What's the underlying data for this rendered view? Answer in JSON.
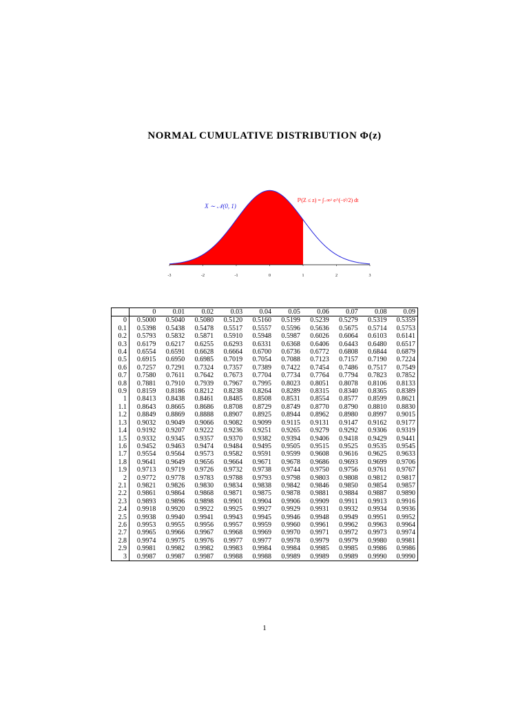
{
  "title": "NORMAL CUMULATIVE DISTRIBUTION Φ(z)",
  "figure": {
    "distribution_label": "X ∼ 𝒩(0, 1)",
    "formula_label": "ℙ(Z ≤ z) = ∫₋∞ᶻ e^(−t²/2) dt",
    "xlim": [
      -3,
      3
    ],
    "xticks": [
      -3,
      -2,
      -1,
      0,
      1,
      2,
      3
    ],
    "shaded_upper_limit": 1,
    "curve_color": "#2222dd",
    "shade_color": "#ff0000"
  },
  "table": {
    "columns": [
      "0",
      "0.01",
      "0.02",
      "0.03",
      "0.04",
      "0.05",
      "0.06",
      "0.07",
      "0.08",
      "0.09"
    ],
    "rows": [
      {
        "label": "0",
        "cells": [
          "0.5000",
          "0.5040",
          "0.5080",
          "0.5120",
          "0.5160",
          "0.5199",
          "0.5239",
          "0.5279",
          "0.5319",
          "0.5359"
        ]
      },
      {
        "label": "0.1",
        "cells": [
          "0.5398",
          "0.5438",
          "0.5478",
          "0.5517",
          "0.5557",
          "0.5596",
          "0.5636",
          "0.5675",
          "0.5714",
          "0.5753"
        ]
      },
      {
        "label": "0.2",
        "cells": [
          "0.5793",
          "0.5832",
          "0.5871",
          "0.5910",
          "0.5948",
          "0.5987",
          "0.6026",
          "0.6064",
          "0.6103",
          "0.6141"
        ]
      },
      {
        "label": "0.3",
        "cells": [
          "0.6179",
          "0.6217",
          "0.6255",
          "0.6293",
          "0.6331",
          "0.6368",
          "0.6406",
          "0.6443",
          "0.6480",
          "0.6517"
        ]
      },
      {
        "label": "0.4",
        "cells": [
          "0.6554",
          "0.6591",
          "0.6628",
          "0.6664",
          "0.6700",
          "0.6736",
          "0.6772",
          "0.6808",
          "0.6844",
          "0.6879"
        ]
      },
      {
        "label": "0.5",
        "cells": [
          "0.6915",
          "0.6950",
          "0.6985",
          "0.7019",
          "0.7054",
          "0.7088",
          "0.7123",
          "0.7157",
          "0.7190",
          "0.7224"
        ]
      },
      {
        "label": "0.6",
        "cells": [
          "0.7257",
          "0.7291",
          "0.7324",
          "0.7357",
          "0.7389",
          "0.7422",
          "0.7454",
          "0.7486",
          "0.7517",
          "0.7549"
        ]
      },
      {
        "label": "0.7",
        "cells": [
          "0.7580",
          "0.7611",
          "0.7642",
          "0.7673",
          "0.7704",
          "0.7734",
          "0.7764",
          "0.7794",
          "0.7823",
          "0.7852"
        ]
      },
      {
        "label": "0.8",
        "cells": [
          "0.7881",
          "0.7910",
          "0.7939",
          "0.7967",
          "0.7995",
          "0.8023",
          "0.8051",
          "0.8078",
          "0.8106",
          "0.8133"
        ]
      },
      {
        "label": "0.9",
        "cells": [
          "0.8159",
          "0.8186",
          "0.8212",
          "0.8238",
          "0.8264",
          "0.8289",
          "0.8315",
          "0.8340",
          "0.8365",
          "0.8389"
        ]
      },
      {
        "label": "1",
        "cells": [
          "0.8413",
          "0.8438",
          "0.8461",
          "0.8485",
          "0.8508",
          "0.8531",
          "0.8554",
          "0.8577",
          "0.8599",
          "0.8621"
        ]
      },
      {
        "label": "1.1",
        "cells": [
          "0.8643",
          "0.8665",
          "0.8686",
          "0.8708",
          "0.8729",
          "0.8749",
          "0.8770",
          "0.8790",
          "0.8810",
          "0.8830"
        ]
      },
      {
        "label": "1.2",
        "cells": [
          "0.8849",
          "0.8869",
          "0.8888",
          "0.8907",
          "0.8925",
          "0.8944",
          "0.8962",
          "0.8980",
          "0.8997",
          "0.9015"
        ]
      },
      {
        "label": "1.3",
        "cells": [
          "0.9032",
          "0.9049",
          "0.9066",
          "0.9082",
          "0.9099",
          "0.9115",
          "0.9131",
          "0.9147",
          "0.9162",
          "0.9177"
        ]
      },
      {
        "label": "1.4",
        "cells": [
          "0.9192",
          "0.9207",
          "0.9222",
          "0.9236",
          "0.9251",
          "0.9265",
          "0.9279",
          "0.9292",
          "0.9306",
          "0.9319"
        ]
      },
      {
        "label": "1.5",
        "cells": [
          "0.9332",
          "0.9345",
          "0.9357",
          "0.9370",
          "0.9382",
          "0.9394",
          "0.9406",
          "0.9418",
          "0.9429",
          "0.9441"
        ]
      },
      {
        "label": "1.6",
        "cells": [
          "0.9452",
          "0.9463",
          "0.9474",
          "0.9484",
          "0.9495",
          "0.9505",
          "0.9515",
          "0.9525",
          "0.9535",
          "0.9545"
        ]
      },
      {
        "label": "1.7",
        "cells": [
          "0.9554",
          "0.9564",
          "0.9573",
          "0.9582",
          "0.9591",
          "0.9599",
          "0.9608",
          "0.9616",
          "0.9625",
          "0.9633"
        ]
      },
      {
        "label": "1.8",
        "cells": [
          "0.9641",
          "0.9649",
          "0.9656",
          "0.9664",
          "0.9671",
          "0.9678",
          "0.9686",
          "0.9693",
          "0.9699",
          "0.9706"
        ]
      },
      {
        "label": "1.9",
        "cells": [
          "0.9713",
          "0.9719",
          "0.9726",
          "0.9732",
          "0.9738",
          "0.9744",
          "0.9750",
          "0.9756",
          "0.9761",
          "0.9767"
        ]
      },
      {
        "label": "2",
        "cells": [
          "0.9772",
          "0.9778",
          "0.9783",
          "0.9788",
          "0.9793",
          "0.9798",
          "0.9803",
          "0.9808",
          "0.9812",
          "0.9817"
        ]
      },
      {
        "label": "2.1",
        "cells": [
          "0.9821",
          "0.9826",
          "0.9830",
          "0.9834",
          "0.9838",
          "0.9842",
          "0.9846",
          "0.9850",
          "0.9854",
          "0.9857"
        ]
      },
      {
        "label": "2.2",
        "cells": [
          "0.9861",
          "0.9864",
          "0.9868",
          "0.9871",
          "0.9875",
          "0.9878",
          "0.9881",
          "0.9884",
          "0.9887",
          "0.9890"
        ]
      },
      {
        "label": "2.3",
        "cells": [
          "0.9893",
          "0.9896",
          "0.9898",
          "0.9901",
          "0.9904",
          "0.9906",
          "0.9909",
          "0.9911",
          "0.9913",
          "0.9916"
        ]
      },
      {
        "label": "2.4",
        "cells": [
          "0.9918",
          "0.9920",
          "0.9922",
          "0.9925",
          "0.9927",
          "0.9929",
          "0.9931",
          "0.9932",
          "0.9934",
          "0.9936"
        ]
      },
      {
        "label": "2.5",
        "cells": [
          "0.9938",
          "0.9940",
          "0.9941",
          "0.9943",
          "0.9945",
          "0.9946",
          "0.9948",
          "0.9949",
          "0.9951",
          "0.9952"
        ]
      },
      {
        "label": "2.6",
        "cells": [
          "0.9953",
          "0.9955",
          "0.9956",
          "0.9957",
          "0.9959",
          "0.9960",
          "0.9961",
          "0.9962",
          "0.9963",
          "0.9964"
        ]
      },
      {
        "label": "2.7",
        "cells": [
          "0.9965",
          "0.9966",
          "0.9967",
          "0.9968",
          "0.9969",
          "0.9970",
          "0.9971",
          "0.9972",
          "0.9973",
          "0.9974"
        ]
      },
      {
        "label": "2.8",
        "cells": [
          "0.9974",
          "0.9975",
          "0.9976",
          "0.9977",
          "0.9977",
          "0.9978",
          "0.9979",
          "0.9979",
          "0.9980",
          "0.9981"
        ]
      },
      {
        "label": "2.9",
        "cells": [
          "0.9981",
          "0.9982",
          "0.9982",
          "0.9983",
          "0.9984",
          "0.9984",
          "0.9985",
          "0.9985",
          "0.9986",
          "0.9986"
        ]
      },
      {
        "label": "3",
        "cells": [
          "0.9987",
          "0.9987",
          "0.9987",
          "0.9988",
          "0.9988",
          "0.9989",
          "0.9989",
          "0.9989",
          "0.9990",
          "0.9990"
        ]
      }
    ]
  },
  "page_number": "1"
}
